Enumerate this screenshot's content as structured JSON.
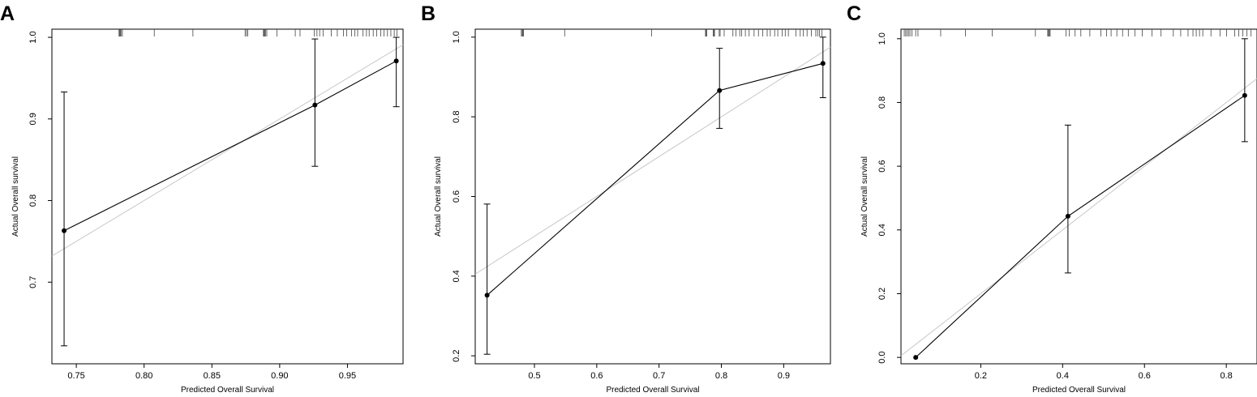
{
  "chart_data": [
    {
      "panel": "A",
      "type": "scatter",
      "xlabel": "Predicted Overall Survival",
      "ylabel": "Actual Overall survival",
      "xlim": [
        0.732,
        0.991
      ],
      "ylim": [
        0.6,
        1.01
      ],
      "xticks": [
        0.75,
        0.8,
        0.85,
        0.9,
        0.95
      ],
      "xtick_labels": [
        "0.75",
        "0.80",
        "0.85",
        "0.90",
        "0.95"
      ],
      "yticks": [
        0.7,
        0.8,
        0.9,
        1.0
      ],
      "ytick_labels": [
        "0.7",
        "0.8",
        "0.9",
        "1.0"
      ],
      "points": [
        {
          "x": 0.741,
          "y": 0.763,
          "lower": 0.622,
          "upper": 0.933
        },
        {
          "x": 0.926,
          "y": 0.917,
          "lower": 0.842,
          "upper": 0.998
        },
        {
          "x": 0.986,
          "y": 0.971,
          "lower": 0.915,
          "upper": 1.0
        }
      ],
      "rug": [
        0.7815,
        0.782,
        0.7825,
        0.783,
        0.784,
        0.8075,
        0.836,
        0.8745,
        0.8755,
        0.8765,
        0.888,
        0.8885,
        0.889,
        0.8895,
        0.8905,
        0.898,
        0.9115,
        0.915,
        0.9255,
        0.9275,
        0.9295,
        0.932,
        0.938,
        0.9425,
        0.947,
        0.9495,
        0.953,
        0.9555,
        0.9575,
        0.9615,
        0.964,
        0.966,
        0.969,
        0.9715,
        0.9745,
        0.977,
        0.9795,
        0.982,
        0.9845,
        0.9865
      ]
    },
    {
      "panel": "B",
      "type": "scatter",
      "xlabel": "Predicted Overall Survival",
      "ylabel": "Actual Overall survival",
      "xlim": [
        0.405,
        0.975
      ],
      "ylim": [
        0.18,
        1.02
      ],
      "xticks": [
        0.5,
        0.6,
        0.7,
        0.8,
        0.9
      ],
      "xtick_labels": [
        "0.5",
        "0.6",
        "0.7",
        "0.8",
        "0.9"
      ],
      "yticks": [
        0.2,
        0.4,
        0.6,
        0.8,
        1.0
      ],
      "ytick_labels": [
        "0.2",
        "0.4",
        "0.6",
        "0.8",
        "1.0"
      ],
      "points": [
        {
          "x": 0.424,
          "y": 0.352,
          "lower": 0.204,
          "upper": 0.581
        },
        {
          "x": 0.797,
          "y": 0.866,
          "lower": 0.771,
          "upper": 0.972
        },
        {
          "x": 0.963,
          "y": 0.934,
          "lower": 0.848,
          "upper": 1.0
        }
      ],
      "rug": [
        0.479,
        0.4805,
        0.4815,
        0.4825,
        0.5485,
        0.688,
        0.7745,
        0.7755,
        0.7765,
        0.787,
        0.7875,
        0.7885,
        0.789,
        0.7965,
        0.798,
        0.8045,
        0.8185,
        0.8235,
        0.8295,
        0.8325,
        0.8385,
        0.8445,
        0.8525,
        0.8595,
        0.8665,
        0.8735,
        0.8785,
        0.8855,
        0.8905,
        0.8975,
        0.9025,
        0.9075,
        0.9195,
        0.9265,
        0.9315,
        0.9375,
        0.9445,
        0.9515,
        0.9545,
        0.9575,
        0.9615
      ]
    },
    {
      "panel": "C",
      "type": "scatter",
      "xlabel": "Predicted Overall Survival",
      "ylabel": "Actual Overall survival",
      "xlim": [
        0.005,
        0.875
      ],
      "ylim": [
        -0.02,
        1.03
      ],
      "xticks": [
        0.2,
        0.4,
        0.6,
        0.8
      ],
      "xtick_labels": [
        "0.2",
        "0.4",
        "0.6",
        "0.8"
      ],
      "yticks": [
        0.0,
        0.2,
        0.4,
        0.6,
        0.8,
        1.0
      ],
      "ytick_labels": [
        "0.0",
        "0.2",
        "0.4",
        "0.6",
        "0.8",
        "1.0"
      ],
      "points": [
        {
          "x": 0.041,
          "y": 0.0,
          "lower": 0.0,
          "upper": 0.0
        },
        {
          "x": 0.413,
          "y": 0.443,
          "lower": 0.265,
          "upper": 0.729
        },
        {
          "x": 0.845,
          "y": 0.822,
          "lower": 0.677,
          "upper": 1.0
        }
      ],
      "rug": [
        0.013,
        0.0165,
        0.02,
        0.0235,
        0.027,
        0.032,
        0.041,
        0.0465,
        0.102,
        0.1625,
        0.228,
        0.3335,
        0.3635,
        0.3655,
        0.3675,
        0.3695,
        0.4085,
        0.4165,
        0.4305,
        0.4445,
        0.4665,
        0.4935,
        0.5075,
        0.5185,
        0.5325,
        0.5465,
        0.5605,
        0.5765,
        0.5945,
        0.6185,
        0.6405,
        0.6705,
        0.6885,
        0.7065,
        0.7185,
        0.7265,
        0.7345,
        0.7425,
        0.7625,
        0.7845,
        0.8005,
        0.8205,
        0.8305,
        0.8405,
        0.8505,
        0.8605
      ]
    }
  ]
}
